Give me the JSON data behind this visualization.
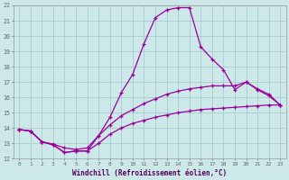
{
  "xlabel": "Windchill (Refroidissement éolien,°C)",
  "background_color": "#cce8e8",
  "grid_color": "#aacccc",
  "line_color": "#990099",
  "xlim": [
    -0.5,
    23.5
  ],
  "ylim": [
    12,
    22
  ],
  "xticks": [
    0,
    1,
    2,
    3,
    4,
    5,
    6,
    7,
    8,
    9,
    10,
    11,
    12,
    13,
    14,
    15,
    16,
    17,
    18,
    19,
    20,
    21,
    22,
    23
  ],
  "yticks": [
    12,
    13,
    14,
    15,
    16,
    17,
    18,
    19,
    20,
    21,
    22
  ],
  "series1_x": [
    0,
    1,
    2,
    3,
    4,
    5,
    6,
    7,
    8,
    9,
    10,
    11,
    12,
    13,
    14,
    15,
    16,
    17,
    18,
    19,
    20,
    21,
    22,
    23
  ],
  "series1_y": [
    13.9,
    13.8,
    13.1,
    12.9,
    12.4,
    12.5,
    12.5,
    13.5,
    14.7,
    16.3,
    17.5,
    19.5,
    21.2,
    21.7,
    21.85,
    21.85,
    19.3,
    18.5,
    17.8,
    16.5,
    17.0,
    16.5,
    16.1,
    15.5
  ],
  "series2_x": [
    0,
    1,
    2,
    3,
    4,
    5,
    6,
    7,
    8,
    9,
    10,
    11,
    12,
    13,
    14,
    15,
    16,
    17,
    18,
    19,
    20,
    21,
    22,
    23
  ],
  "series2_y": [
    13.9,
    13.8,
    13.1,
    12.95,
    12.7,
    12.6,
    12.7,
    13.5,
    14.2,
    14.8,
    15.2,
    15.6,
    15.9,
    16.2,
    16.4,
    16.55,
    16.65,
    16.75,
    16.75,
    16.75,
    17.0,
    16.55,
    16.2,
    15.5
  ],
  "series3_x": [
    0,
    1,
    2,
    3,
    4,
    5,
    6,
    7,
    8,
    9,
    10,
    11,
    12,
    13,
    14,
    15,
    16,
    17,
    18,
    19,
    20,
    21,
    22,
    23
  ],
  "series3_y": [
    13.9,
    13.8,
    13.1,
    12.9,
    12.4,
    12.5,
    12.5,
    13.0,
    13.6,
    14.0,
    14.3,
    14.5,
    14.7,
    14.85,
    15.0,
    15.1,
    15.2,
    15.25,
    15.3,
    15.35,
    15.4,
    15.45,
    15.5,
    15.5
  ]
}
